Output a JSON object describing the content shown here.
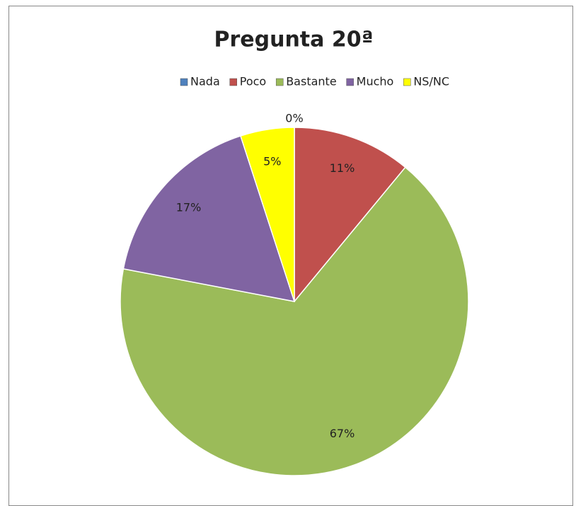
{
  "chart_data": {
    "type": "pie",
    "title": "Pregunta 20ª",
    "categories": [
      "Nada",
      "Poco",
      "Bastante",
      "Mucho",
      "NS/NC"
    ],
    "values": [
      0,
      11,
      67,
      17,
      5
    ],
    "value_labels": [
      "0%",
      "11%",
      "67%",
      "17%",
      "5%"
    ],
    "colors": [
      "#4f81bd",
      "#c0504d",
      "#9bbb59",
      "#8064a2",
      "#ffff00"
    ],
    "legend": "top"
  }
}
